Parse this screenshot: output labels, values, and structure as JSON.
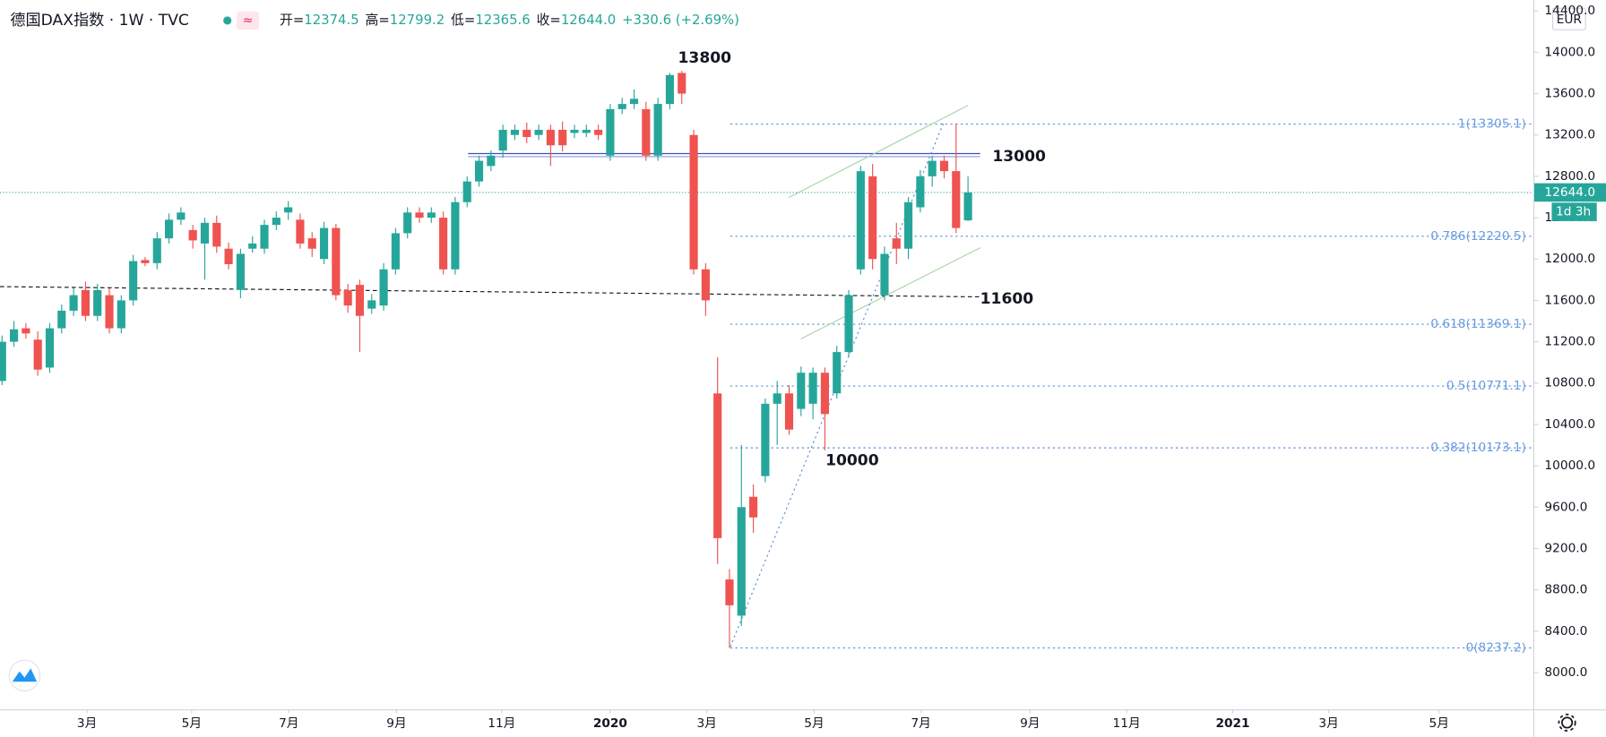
{
  "header": {
    "title": "德国DAX指数 · 1W · TVC",
    "ohlc": [
      {
        "label": "开=",
        "value": "12374.5"
      },
      {
        "label": "高=",
        "value": "12799.2"
      },
      {
        "label": "低=",
        "value": "12365.6"
      },
      {
        "label": "收=",
        "value": "12644.0"
      }
    ],
    "change": "+330.6 (+2.69%)"
  },
  "chart_data": {
    "type": "candlestick",
    "open": [
      10820,
      11200,
      11330,
      11220,
      10950,
      11330,
      11500,
      11700,
      11450,
      11650,
      11330,
      11600,
      11990,
      11960,
      12200,
      12380,
      12280,
      12150,
      12350,
      12100,
      11700,
      12100,
      12100,
      12330,
      12450,
      12380,
      12200,
      12000,
      12300,
      11700,
      11750,
      11520,
      11550,
      11900,
      12250,
      12450,
      12400,
      12400,
      11900,
      12550,
      12750,
      12900,
      13050,
      13200,
      13250,
      13200,
      13250,
      13250,
      13220,
      13220,
      13250,
      13000,
      13450,
      13500,
      13450,
      13000,
      13500,
      13800,
      13200,
      11900,
      10700,
      8900,
      8550,
      9700,
      9900,
      10600,
      10700,
      10550,
      10600,
      10900,
      10700,
      11100,
      11900,
      12800,
      11650,
      12200,
      12100,
      12500,
      12800,
      12950,
      12850,
      12374.5
    ],
    "high": [
      11260,
      11400,
      11380,
      11300,
      11380,
      11560,
      11720,
      11780,
      11760,
      11720,
      11650,
      12040,
      12020,
      12260,
      12440,
      12500,
      12330,
      12400,
      12420,
      12160,
      12100,
      12220,
      12380,
      12460,
      12560,
      12440,
      12260,
      12360,
      12340,
      11760,
      11800,
      11660,
      11960,
      12300,
      12500,
      12500,
      12500,
      12460,
      12600,
      12800,
      13000,
      13050,
      13300,
      13300,
      13320,
      13300,
      13300,
      13330,
      13300,
      13300,
      13300,
      13500,
      13560,
      13640,
      13520,
      13560,
      13800,
      13820,
      13250,
      11960,
      11050,
      9000,
      10200,
      9820,
      10650,
      10820,
      10780,
      10960,
      10950,
      10950,
      11160,
      11700,
      12900,
      12920,
      12120,
      12350,
      12600,
      12860,
      13000,
      13000,
      13310,
      12799.2
    ],
    "low": [
      10780,
      11150,
      11230,
      10870,
      10900,
      11280,
      11450,
      11400,
      11400,
      11280,
      11280,
      11550,
      11930,
      11900,
      12150,
      12330,
      12100,
      11800,
      12060,
      11900,
      11620,
      12060,
      12050,
      12280,
      12380,
      12100,
      12020,
      11950,
      11600,
      11480,
      11100,
      11470,
      11500,
      11850,
      12200,
      12350,
      12350,
      11850,
      11850,
      12500,
      12700,
      12850,
      12980,
      13150,
      13120,
      13150,
      12900,
      13040,
      13170,
      13180,
      13150,
      12950,
      13400,
      13450,
      12950,
      12950,
      13450,
      13500,
      11850,
      11450,
      9050,
      8237.2,
      8450,
      9350,
      9840,
      10200,
      10300,
      10480,
      10450,
      10150,
      10650,
      11050,
      11850,
      11900,
      11600,
      11950,
      12000,
      12450,
      12700,
      12780,
      12250,
      12365.6
    ],
    "close": [
      11200,
      11320,
      11280,
      10930,
      11330,
      11500,
      11650,
      11450,
      11700,
      11330,
      11600,
      11980,
      11960,
      12200,
      12380,
      12450,
      12180,
      12350,
      12120,
      11950,
      12050,
      12150,
      12330,
      12400,
      12500,
      12150,
      12100,
      12300,
      11650,
      11550,
      11450,
      11600,
      11900,
      12250,
      12450,
      12400,
      12450,
      11900,
      12550,
      12750,
      12950,
      13000,
      13250,
      13250,
      13180,
      13250,
      13100,
      13100,
      13250,
      13250,
      13200,
      13450,
      13500,
      13550,
      13000,
      13500,
      13780,
      13600,
      11900,
      11600,
      9300,
      8650,
      9600,
      9500,
      10600,
      10700,
      10350,
      10900,
      10900,
      10500,
      11100,
      11650,
      12850,
      12000,
      12050,
      12100,
      12550,
      12800,
      12950,
      12850,
      12300,
      12644.0
    ],
    "up_color": "#26a69a",
    "down_color": "#ef5350",
    "xlim": [
      -0.17,
      128.4
    ],
    "xticks": [
      {
        "value": 7.13,
        "label": "3月"
      },
      {
        "value": 15.9,
        "label": "5月"
      },
      {
        "value": 24.05,
        "label": "7月"
      },
      {
        "value": 33.08,
        "label": "9月"
      },
      {
        "value": 41.9,
        "label": "11月"
      },
      {
        "value": 51.0,
        "label": "2020"
      },
      {
        "value": 59.1,
        "label": "3月"
      },
      {
        "value": 68.1,
        "label": "5月"
      },
      {
        "value": 77.06,
        "label": "7月"
      },
      {
        "value": 86.2,
        "label": "9月"
      },
      {
        "value": 94.3,
        "label": "11月"
      },
      {
        "value": 103.2,
        "label": "2021"
      },
      {
        "value": 111.25,
        "label": "3月"
      },
      {
        "value": 120.5,
        "label": "5月"
      }
    ],
    "ylim": [
      7644,
      14505
    ],
    "yticks": [
      {
        "value": 8000,
        "label": "8000.0"
      },
      {
        "value": 8400,
        "label": "8400.0"
      },
      {
        "value": 8800,
        "label": "8800.0"
      },
      {
        "value": 9200,
        "label": "9200.0"
      },
      {
        "value": 9600,
        "label": "9600.0"
      },
      {
        "value": 10000,
        "label": "10000.0"
      },
      {
        "value": 10400,
        "label": "10400.0"
      },
      {
        "value": 10800,
        "label": "10800.0"
      },
      {
        "value": 11200,
        "label": "11200.0"
      },
      {
        "value": 11600,
        "label": "11600.0"
      },
      {
        "value": 12000,
        "label": "12000.0"
      },
      {
        "value": 12400,
        "label": "12400.0"
      },
      {
        "value": 12800,
        "label": "12800.0"
      },
      {
        "value": 13200,
        "label": "13200.0"
      },
      {
        "value": 13600,
        "label": "13600.0"
      },
      {
        "value": 14000,
        "label": "14000.0"
      },
      {
        "value": 14400,
        "label": "14400.0"
      }
    ],
    "last_price": {
      "value": 12644.0,
      "label": "12644.0"
    },
    "countdown": "1d 3h",
    "currency": "EUR",
    "fib_levels": [
      {
        "value": 13305.1,
        "label": "1(13305.1)"
      },
      {
        "value": 12220.5,
        "label": "0.786(12220.5)"
      },
      {
        "value": 11369.1,
        "label": "0.618(11369.1)"
      },
      {
        "value": 10771.1,
        "label": "0.5(10771.1)"
      },
      {
        "value": 10173.1,
        "label": "0.382(10173.1)"
      },
      {
        "value": 8237.2,
        "label": "0(8237.2)"
      }
    ],
    "annotations": [
      "13800",
      "13000",
      "11600",
      "10000"
    ]
  }
}
